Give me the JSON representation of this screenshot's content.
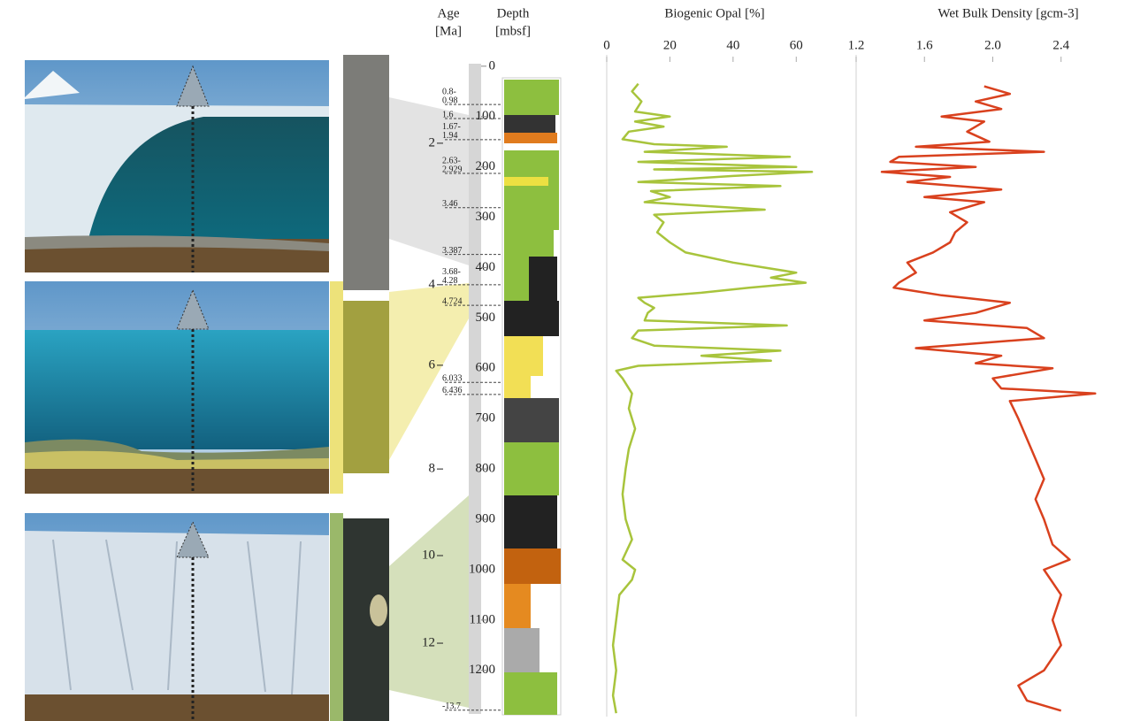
{
  "chart_data": [
    {
      "type": "depth-log",
      "age_title": [
        "Age",
        "[Ma]"
      ],
      "depth_title": [
        "Depth",
        "[mbsf]"
      ],
      "ylim": [
        -12,
        1290
      ],
      "yticks": [
        0,
        100,
        200,
        300,
        400,
        500,
        600,
        700,
        800,
        900,
        1000,
        1100,
        1200
      ],
      "age_ticks": [
        {
          "age": 2,
          "depth": 153
        },
        {
          "age": 4,
          "depth": 434
        },
        {
          "age": 6,
          "depth": 594
        },
        {
          "age": 8,
          "depth": 800
        },
        {
          "age": 10,
          "depth": 972
        },
        {
          "age": 12,
          "depth": 1146
        }
      ],
      "age_markers": [
        {
          "label": [
            "0.8-",
            "0.98"
          ],
          "depth": 76
        },
        {
          "label": [
            "1.6"
          ],
          "depth": 104
        },
        {
          "label": [
            "1.67-",
            "1.94"
          ],
          "depth": 146
        },
        {
          "label": [
            "2.63-",
            "2.929"
          ],
          "depth": 213
        },
        {
          "label": [
            "3.46"
          ],
          "depth": 281
        },
        {
          "label": [
            "3.387"
          ],
          "depth": 374
        },
        {
          "label": [
            "3.68-",
            "4.28"
          ],
          "depth": 434
        },
        {
          "label": [
            "4.724"
          ],
          "depth": 475
        },
        {
          "label": [
            "6.033"
          ],
          "depth": 628
        },
        {
          "label": [
            "6.436"
          ],
          "depth": 652
        },
        {
          "label": [
            "-13.7"
          ],
          "depth": 1279
        }
      ]
    },
    {
      "type": "line",
      "title": "Biogenic Opal [%]",
      "color": "#a8c43c",
      "xlim": [
        0,
        70
      ],
      "xticks": [
        0,
        20,
        40,
        60
      ],
      "depth": [
        35,
        50,
        70,
        90,
        100,
        110,
        120,
        130,
        145,
        155,
        160,
        170,
        180,
        190,
        200,
        205,
        210,
        218,
        230,
        238,
        248,
        260,
        270,
        285,
        295,
        310,
        330,
        350,
        370,
        390,
        400,
        410,
        420,
        430,
        440,
        450,
        460,
        470,
        480,
        490,
        505,
        515,
        525,
        540,
        555,
        565,
        575,
        585,
        595,
        605,
        620,
        650,
        680,
        720,
        760,
        800,
        850,
        900,
        940,
        980,
        1000,
        1020,
        1050,
        1100,
        1150,
        1200,
        1250,
        1285
      ],
      "values": [
        10,
        8,
        11,
        9,
        20,
        9,
        18,
        7,
        5,
        15,
        38,
        12,
        58,
        10,
        60,
        15,
        65,
        40,
        10,
        55,
        14,
        20,
        12,
        50,
        15,
        18,
        16,
        20,
        25,
        40,
        50,
        60,
        52,
        63,
        45,
        30,
        10,
        12,
        15,
        13,
        12,
        57,
        10,
        8,
        15,
        55,
        30,
        52,
        10,
        3,
        5,
        8,
        7,
        9,
        7,
        6,
        5,
        6,
        8,
        5,
        9,
        8,
        4,
        3,
        2,
        3,
        2,
        3
      ]
    },
    {
      "type": "line",
      "title": "Wet Bulk Density [gcm-3]",
      "color": "#d9411e",
      "xlim": [
        1.2,
        2.65
      ],
      "xticks": [
        1.2,
        1.6,
        {
          "value": 2,
          "label": "2.0"
        },
        2.4
      ],
      "depth": [
        40,
        55,
        70,
        85,
        100,
        110,
        130,
        150,
        160,
        170,
        180,
        190,
        200,
        210,
        220,
        230,
        245,
        260,
        270,
        290,
        310,
        330,
        350,
        370,
        390,
        410,
        430,
        440,
        455,
        470,
        490,
        505,
        520,
        540,
        560,
        575,
        590,
        600,
        620,
        640,
        650,
        665,
        700,
        740,
        780,
        820,
        860,
        900,
        950,
        980,
        1000,
        1050,
        1100,
        1150,
        1200,
        1230,
        1260,
        1280
      ],
      "values": [
        1.95,
        2.1,
        1.9,
        2.05,
        1.7,
        1.95,
        1.85,
        1.98,
        1.55,
        2.3,
        1.45,
        1.4,
        1.9,
        1.35,
        1.75,
        1.5,
        2.05,
        1.6,
        1.95,
        1.75,
        1.85,
        1.78,
        1.75,
        1.65,
        1.5,
        1.55,
        1.45,
        1.42,
        1.7,
        2.1,
        1.9,
        1.6,
        2.2,
        2.3,
        1.55,
        2.05,
        1.9,
        2.35,
        2.0,
        2.05,
        2.6,
        2.1,
        2.15,
        2.2,
        2.25,
        2.3,
        2.25,
        2.3,
        2.35,
        2.45,
        2.3,
        2.4,
        2.35,
        2.4,
        2.3,
        2.15,
        2.2,
        2.4
      ]
    }
  ]
}
